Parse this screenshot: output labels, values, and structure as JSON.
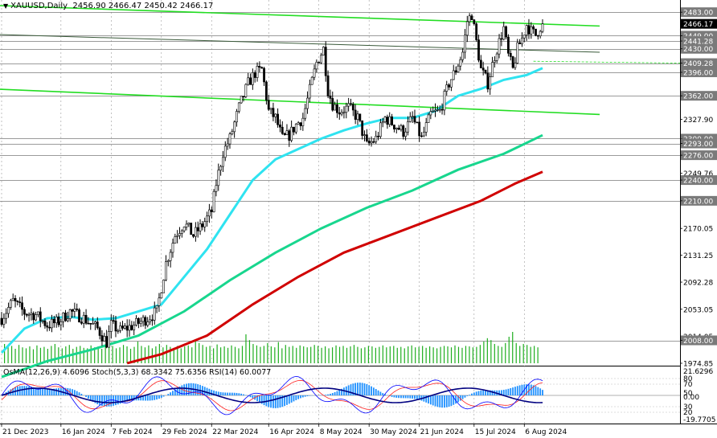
{
  "header": {
    "symbol_line": "XAUUSD,Daily",
    "ohlc": "2456.90 2466.47 2450.42 2466.17"
  },
  "indicator_label": "OsMA(12,26,9) 4.6096 Stoch(5,3,3) 68.3342 75.6356 RSI(14) 60.0077",
  "colors": {
    "background": "#ffffff",
    "candles": "#000000",
    "ema50": "#2fe3f0",
    "ema144": "#18d68e",
    "ema200": "#d00000",
    "trend": "#22dd22",
    "volume": "#1fae1f",
    "hline": "#7a7a7a",
    "osma": "#1e90ff",
    "stoch_main": "#0000ff",
    "stoch_signal": "#ff2020",
    "rsi": "#000080"
  },
  "chart_data": {
    "type": "candlestick",
    "y_ticks": [
      "2483.00",
      "2466.17",
      "2449.00",
      "2441.28",
      "2430.00",
      "2409.28",
      "2396.00",
      "2362.00",
      "2327.90",
      "2300.00",
      "2293.00",
      "2276.00",
      "2249.76",
      "2240.00",
      "2210.00",
      "2170.05",
      "2131.25",
      "2092.28",
      "2053.05",
      "2014.05",
      "2008.00",
      "1974.85"
    ],
    "price_range": [
      1974.85,
      2496
    ],
    "level_lines": [
      2483.0,
      2449.0,
      2441.28,
      2430.0,
      2409.28,
      2396.0,
      2362.0,
      2300.0,
      2293.0,
      2276.0,
      2240.0,
      2210.0,
      2008.0
    ],
    "current_price": 2466.17,
    "current_price_label": "2466.17",
    "x_labels": [
      "21 Dec 2023",
      "16 Jan 2024",
      "7 Feb 2024",
      "29 Feb 2024",
      "22 Mar 2024",
      "16 Apr 2024",
      "8 May 2024",
      "30 May 2024",
      "21 Jun 2024",
      "15 Jul 2024",
      "6 Aug 2024"
    ],
    "x_label_days": [
      0,
      26,
      48,
      70,
      92,
      117,
      139,
      161,
      183,
      207,
      229
    ],
    "last_day": 237,
    "price_path": [
      [
        0,
        2040
      ],
      [
        5,
        2065
      ],
      [
        10,
        2048
      ],
      [
        15,
        2045
      ],
      [
        20,
        2030
      ],
      [
        25,
        2035
      ],
      [
        30,
        2050
      ],
      [
        36,
        2040
      ],
      [
        42,
        2025
      ],
      [
        46,
        2005
      ],
      [
        48,
        2030
      ],
      [
        52,
        2022
      ],
      [
        58,
        2030
      ],
      [
        64,
        2040
      ],
      [
        68,
        2050
      ],
      [
        72,
        2120
      ],
      [
        76,
        2160
      ],
      [
        80,
        2178
      ],
      [
        84,
        2160
      ],
      [
        88,
        2175
      ],
      [
        92,
        2195
      ],
      [
        94,
        2235
      ],
      [
        97,
        2280
      ],
      [
        100,
        2300
      ],
      [
        104,
        2345
      ],
      [
        108,
        2380
      ],
      [
        111,
        2395
      ],
      [
        114,
        2400
      ],
      [
        117,
        2340
      ],
      [
        120,
        2330
      ],
      [
        123,
        2300
      ],
      [
        126,
        2305
      ],
      [
        129,
        2320
      ],
      [
        132,
        2330
      ],
      [
        135,
        2370
      ],
      [
        138,
        2410
      ],
      [
        141,
        2430
      ],
      [
        143,
        2370
      ],
      [
        145,
        2350
      ],
      [
        148,
        2340
      ],
      [
        152,
        2345
      ],
      [
        156,
        2330
      ],
      [
        160,
        2290
      ],
      [
        164,
        2300
      ],
      [
        168,
        2330
      ],
      [
        172,
        2320
      ],
      [
        176,
        2310
      ],
      [
        180,
        2330
      ],
      [
        184,
        2300
      ],
      [
        188,
        2335
      ],
      [
        192,
        2340
      ],
      [
        196,
        2380
      ],
      [
        199,
        2400
      ],
      [
        202,
        2425
      ],
      [
        204,
        2470
      ],
      [
        206,
        2480
      ],
      [
        208,
        2440
      ],
      [
        210,
        2400
      ],
      [
        213,
        2380
      ],
      [
        216,
        2420
      ],
      [
        218,
        2440
      ],
      [
        220,
        2460
      ],
      [
        222,
        2420
      ],
      [
        224,
        2400
      ],
      [
        226,
        2430
      ],
      [
        228,
        2445
      ],
      [
        230,
        2465
      ],
      [
        232,
        2455
      ],
      [
        234,
        2450
      ],
      [
        236,
        2462
      ],
      [
        237,
        2466
      ]
    ],
    "ema50": [
      [
        0,
        1990
      ],
      [
        10,
        2025
      ],
      [
        20,
        2040
      ],
      [
        30,
        2042
      ],
      [
        40,
        2038
      ],
      [
        50,
        2040
      ],
      [
        60,
        2050
      ],
      [
        70,
        2060
      ],
      [
        80,
        2100
      ],
      [
        90,
        2140
      ],
      [
        100,
        2190
      ],
      [
        110,
        2240
      ],
      [
        120,
        2270
      ],
      [
        130,
        2285
      ],
      [
        140,
        2300
      ],
      [
        150,
        2312
      ],
      [
        160,
        2322
      ],
      [
        170,
        2330
      ],
      [
        180,
        2330
      ],
      [
        190,
        2340
      ],
      [
        200,
        2362
      ],
      [
        210,
        2372
      ],
      [
        220,
        2385
      ],
      [
        230,
        2392
      ],
      [
        237,
        2402
      ]
    ],
    "ema144": [
      [
        0,
        1955
      ],
      [
        20,
        1978
      ],
      [
        40,
        1995
      ],
      [
        60,
        2015
      ],
      [
        80,
        2050
      ],
      [
        100,
        2095
      ],
      [
        120,
        2135
      ],
      [
        140,
        2170
      ],
      [
        160,
        2200
      ],
      [
        180,
        2225
      ],
      [
        200,
        2255
      ],
      [
        220,
        2278
      ],
      [
        237,
        2305
      ]
    ],
    "ema200": [
      [
        55,
        1975
      ],
      [
        70,
        1988
      ],
      [
        90,
        2015
      ],
      [
        110,
        2060
      ],
      [
        130,
        2100
      ],
      [
        150,
        2135
      ],
      [
        170,
        2160
      ],
      [
        190,
        2185
      ],
      [
        210,
        2210
      ],
      [
        225,
        2235
      ],
      [
        237,
        2252
      ]
    ],
    "trendlines": [
      {
        "from": [
          -5,
          2493
        ],
        "to": [
          262,
          2463
        ]
      },
      {
        "from": [
          -5,
          2372
        ],
        "to": [
          262,
          2335
        ]
      },
      {
        "from": [
          -5,
          2451
        ],
        "to": [
          262,
          2425
        ]
      }
    ],
    "volume_series": [
      0.4,
      0.34,
      0.36,
      0.3,
      0.38,
      0.33,
      0.31,
      0.35,
      0.29,
      0.37,
      0.32,
      0.34,
      0.3,
      0.36,
      0.4,
      0.33,
      0.31,
      0.35,
      0.38,
      0.3,
      0.34,
      0.36,
      0.32,
      0.31,
      0.37,
      0.33,
      0.35,
      0.3,
      0.39,
      0.34,
      0.36,
      0.31,
      0.33,
      0.38,
      0.35,
      0.3,
      0.34,
      0.45,
      0.36,
      0.33,
      0.37,
      0.31,
      0.35,
      0.4,
      0.33,
      0.38,
      0.34,
      0.32,
      0.36,
      0.31,
      0.35,
      0.37,
      0.33,
      0.5,
      0.42,
      0.38,
      0.34,
      0.36,
      0.31,
      0.39,
      0.33,
      0.35,
      0.32,
      0.37,
      0.34,
      0.31,
      0.36,
      0.6,
      0.48,
      0.4,
      0.37,
      0.34,
      0.36,
      0.42,
      0.35,
      0.33,
      0.44,
      0.31,
      0.38,
      0.34,
      0.36,
      0.32,
      0.37,
      0.35,
      0.33,
      0.34,
      0.38,
      0.36,
      0.32,
      0.35,
      0.31,
      0.33,
      0.37,
      0.34,
      0.36,
      0.32,
      0.35,
      0.38,
      0.34,
      0.31,
      0.33,
      0.36,
      0.35,
      0.32,
      0.34,
      0.37,
      0.33,
      0.35,
      0.36,
      0.32,
      0.34,
      0.31,
      0.35,
      0.37,
      0.33,
      0.34,
      0.36,
      0.32,
      0.35,
      0.33,
      0.31,
      0.34,
      0.36,
      0.35,
      0.33,
      0.37,
      0.34,
      0.32,
      0.36,
      0.35,
      0.33,
      0.34,
      0.38,
      0.45,
      0.52,
      0.48,
      0.4,
      0.36,
      0.34,
      0.42,
      0.55,
      0.65,
      0.42,
      0.36,
      0.4,
      0.38,
      0.34,
      0.36,
      0.33
    ],
    "osc_ticks": [
      "21.6296",
      "80",
      "70",
      "50",
      "0.00",
      "30",
      "20",
      "-19.7705"
    ]
  }
}
